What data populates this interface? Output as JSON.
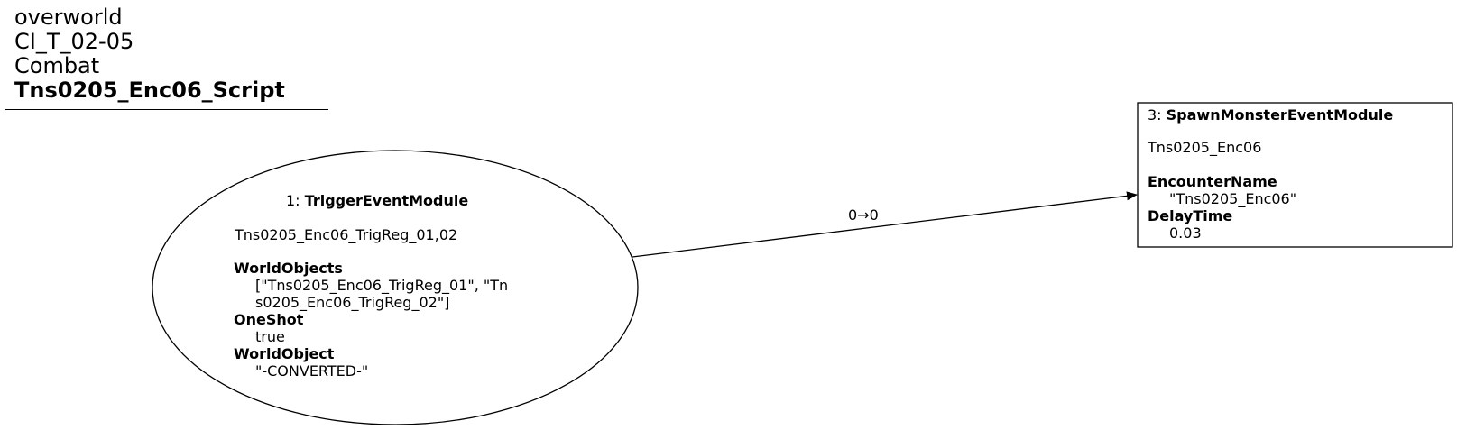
{
  "header": {
    "line1": "overworld",
    "line2": "CI_T_02-05",
    "line3": "Combat",
    "line4": "Tns0205_Enc06_Script"
  },
  "nodes": [
    {
      "id": "1",
      "shape": "ellipse",
      "prefix": "1: ",
      "type": "TriggerEventModule",
      "name": "Tns0205_Enc06_TrigReg_01,02",
      "props": [
        {
          "key": "WorldObjects",
          "value_lines": [
            "[\"Tns0205_Enc06_TrigReg_01\", \"Tn",
            "s0205_Enc06_TrigReg_02\"]"
          ]
        },
        {
          "key": "OneShot",
          "value_lines": [
            "true"
          ]
        },
        {
          "key": "WorldObject",
          "value_lines": [
            "\"-CONVERTED-\""
          ]
        }
      ]
    },
    {
      "id": "3",
      "shape": "box",
      "prefix": "3: ",
      "type": "SpawnMonsterEventModule",
      "name": "Tns0205_Enc06",
      "props": [
        {
          "key": "EncounterName",
          "value_lines": [
            "\"Tns0205_Enc06\""
          ]
        },
        {
          "key": "DelayTime",
          "value_lines": [
            "0.03"
          ]
        }
      ]
    }
  ],
  "edges": [
    {
      "from": "1",
      "to": "3",
      "label": "0→0"
    }
  ]
}
